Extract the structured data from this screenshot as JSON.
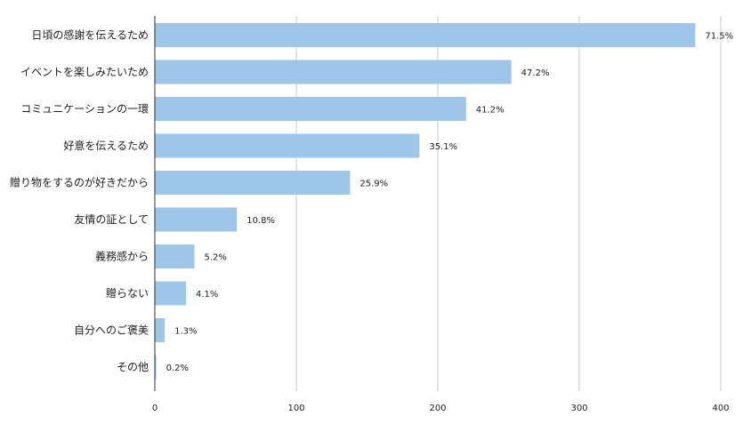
{
  "chart_data": {
    "type": "bar",
    "orientation": "horizontal",
    "categories": [
      "日頃の感謝を伝えるため",
      "イベントを楽しみたいため",
      "コミュニケーションの一環",
      "好意を伝えるため",
      "贈り物をするのが好きだから",
      "友情の証として",
      "義務感から",
      "贈らない",
      "自分へのご褒美",
      "その他"
    ],
    "values": [
      382,
      252,
      220,
      187,
      138,
      58,
      28,
      22,
      7,
      1
    ],
    "data_labels": [
      "71.5%",
      "47.2%",
      "41.2%",
      "35.1%",
      "25.9%",
      "10.8%",
      "5.2%",
      "4.1%",
      "1.3%",
      "0.2%"
    ],
    "xlim": [
      0,
      400
    ],
    "xticks": [
      "0",
      "100",
      "200",
      "300",
      "400"
    ],
    "grid": true,
    "legend": "none",
    "title": "",
    "xlabel": "",
    "ylabel": "",
    "colors": {
      "bar": "#9fc5e8",
      "grid": "#cccccc",
      "axis": "#333333",
      "text": "#222222"
    }
  }
}
